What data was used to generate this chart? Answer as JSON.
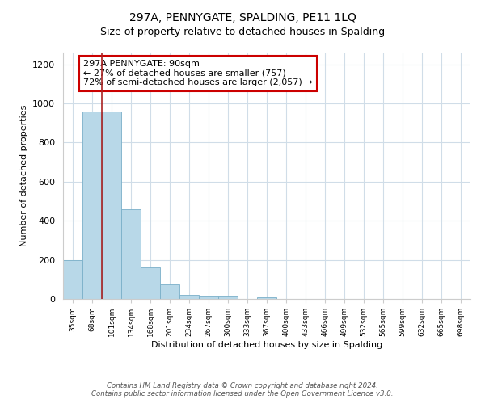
{
  "title": "297A, PENNYGATE, SPALDING, PE11 1LQ",
  "subtitle": "Size of property relative to detached houses in Spalding",
  "xlabel": "Distribution of detached houses by size in Spalding",
  "ylabel": "Number of detached properties",
  "bar_labels": [
    "35sqm",
    "68sqm",
    "101sqm",
    "134sqm",
    "168sqm",
    "201sqm",
    "234sqm",
    "267sqm",
    "300sqm",
    "333sqm",
    "367sqm",
    "400sqm",
    "433sqm",
    "466sqm",
    "499sqm",
    "532sqm",
    "565sqm",
    "599sqm",
    "632sqm",
    "665sqm",
    "698sqm"
  ],
  "bar_values": [
    200,
    957,
    957,
    460,
    160,
    73,
    22,
    15,
    15,
    0,
    10,
    0,
    0,
    0,
    0,
    0,
    0,
    0,
    0,
    0,
    0
  ],
  "bar_color": "#b8d8e8",
  "bar_edge_color": "#7aafc8",
  "annotation_line1": "297A PENNYGATE: 90sqm",
  "annotation_line2": "← 27% of detached houses are smaller (757)",
  "annotation_line3": "72% of semi-detached houses are larger (2,057) →",
  "annotation_box_edge_color": "#cc0000",
  "red_line_x": 1.5,
  "ylim": [
    0,
    1260
  ],
  "yticks": [
    0,
    200,
    400,
    600,
    800,
    1000,
    1200
  ],
  "footer_line1": "Contains HM Land Registry data © Crown copyright and database right 2024.",
  "footer_line2": "Contains public sector information licensed under the Open Government Licence v3.0.",
  "bg_color": "#ffffff",
  "grid_color": "#d0dde8"
}
